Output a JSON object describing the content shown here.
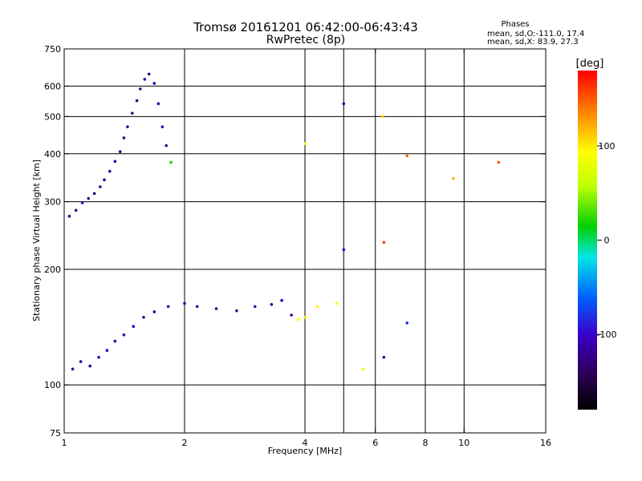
{
  "chart_data": {
    "type": "scatter",
    "title": "Tromsø 20161201 06:42:00-06:43:43",
    "subtitle": "RwPretec (8p)",
    "xlabel": "Frequency [MHz]",
    "ylabel": "Stationary phase Virtual Height [km]",
    "x_scale": "log",
    "y_scale": "log",
    "xlim": [
      1,
      16
    ],
    "ylim": [
      75,
      750
    ],
    "x_ticks": [
      "1",
      "2",
      "4",
      "6",
      "8",
      "10",
      "16"
    ],
    "x_tick_values": [
      1,
      2,
      4,
      6,
      8,
      10,
      16
    ],
    "y_ticks": [
      "75",
      "100",
      "200",
      "300",
      "400",
      "500",
      "600",
      "750"
    ],
    "y_tick_values": [
      75,
      100,
      200,
      300,
      400,
      500,
      600,
      750
    ],
    "x_grid": [
      2,
      4,
      5,
      6,
      8,
      10
    ],
    "y_grid": [
      100,
      200,
      300,
      400,
      500,
      600
    ],
    "grid": true,
    "phase_info": {
      "heading": "Phases",
      "line1": "mean, sd,O:-111.0, 17.4",
      "line2": "mean, sd,X:  83.9, 27.3"
    },
    "colorbar": {
      "label": "[deg]",
      "range": [
        -180,
        180
      ],
      "ticks": [
        "100",
        "0",
        "-100"
      ],
      "tick_values": [
        100,
        0,
        -100
      ]
    },
    "series": [
      {
        "values": [
          {
            "x": 1.03,
            "y": 275,
            "phase": -115
          },
          {
            "x": 1.07,
            "y": 285,
            "phase": -125
          },
          {
            "x": 1.11,
            "y": 298,
            "phase": -110
          },
          {
            "x": 1.15,
            "y": 306,
            "phase": -120
          },
          {
            "x": 1.19,
            "y": 315,
            "phase": -130
          },
          {
            "x": 1.23,
            "y": 328,
            "phase": -115
          },
          {
            "x": 1.26,
            "y": 342,
            "phase": -125
          },
          {
            "x": 1.3,
            "y": 360,
            "phase": -118
          },
          {
            "x": 1.34,
            "y": 382,
            "phase": -112
          },
          {
            "x": 1.38,
            "y": 405,
            "phase": -125
          },
          {
            "x": 1.41,
            "y": 440,
            "phase": -122
          },
          {
            "x": 1.44,
            "y": 470,
            "phase": -115
          },
          {
            "x": 1.48,
            "y": 510,
            "phase": -120
          },
          {
            "x": 1.52,
            "y": 550,
            "phase": -135
          },
          {
            "x": 1.55,
            "y": 590,
            "phase": -118
          },
          {
            "x": 1.59,
            "y": 625,
            "phase": -112
          },
          {
            "x": 1.63,
            "y": 645,
            "phase": -125
          },
          {
            "x": 1.68,
            "y": 610,
            "phase": -115
          },
          {
            "x": 1.72,
            "y": 540,
            "phase": -120
          },
          {
            "x": 1.76,
            "y": 470,
            "phase": -110
          },
          {
            "x": 1.8,
            "y": 420,
            "phase": -123
          },
          {
            "x": 1.85,
            "y": 380,
            "phase": 20
          },
          {
            "x": 5.0,
            "y": 540,
            "phase": -118
          },
          {
            "x": 5.0,
            "y": 225,
            "phase": -100
          },
          {
            "x": 4.0,
            "y": 425,
            "phase": 95
          },
          {
            "x": 6.25,
            "y": 500,
            "phase": 110
          },
          {
            "x": 7.2,
            "y": 395,
            "phase": 145
          },
          {
            "x": 6.3,
            "y": 235,
            "phase": 160
          },
          {
            "x": 9.4,
            "y": 345,
            "phase": 120
          },
          {
            "x": 12.2,
            "y": 380,
            "phase": 150
          }
        ]
      },
      {
        "values": [
          {
            "x": 1.05,
            "y": 110,
            "phase": -110
          },
          {
            "x": 1.1,
            "y": 115,
            "phase": -115
          },
          {
            "x": 1.16,
            "y": 112,
            "phase": -120
          },
          {
            "x": 1.22,
            "y": 118,
            "phase": -112
          },
          {
            "x": 1.28,
            "y": 123,
            "phase": -108
          },
          {
            "x": 1.34,
            "y": 130,
            "phase": -118
          },
          {
            "x": 1.41,
            "y": 135,
            "phase": -105
          },
          {
            "x": 1.49,
            "y": 142,
            "phase": -112
          },
          {
            "x": 1.58,
            "y": 150,
            "phase": -120
          },
          {
            "x": 1.68,
            "y": 155,
            "phase": -116
          },
          {
            "x": 1.82,
            "y": 160,
            "phase": -110
          },
          {
            "x": 2.0,
            "y": 163,
            "phase": -108
          },
          {
            "x": 2.15,
            "y": 160,
            "phase": -112
          },
          {
            "x": 2.4,
            "y": 158,
            "phase": -120
          },
          {
            "x": 2.7,
            "y": 156,
            "phase": -118
          },
          {
            "x": 3.0,
            "y": 160,
            "phase": -114
          },
          {
            "x": 3.3,
            "y": 162,
            "phase": -119
          },
          {
            "x": 3.5,
            "y": 166,
            "phase": -115
          },
          {
            "x": 3.7,
            "y": 152,
            "phase": -120
          },
          {
            "x": 3.85,
            "y": 148,
            "phase": 95
          },
          {
            "x": 4.0,
            "y": 150,
            "phase": 100
          },
          {
            "x": 4.3,
            "y": 160,
            "phase": 98
          },
          {
            "x": 4.8,
            "y": 163,
            "phase": 90
          },
          {
            "x": 5.6,
            "y": 110,
            "phase": 92
          },
          {
            "x": 6.3,
            "y": 118,
            "phase": -110
          },
          {
            "x": 7.2,
            "y": 145,
            "phase": -80
          }
        ]
      }
    ]
  }
}
